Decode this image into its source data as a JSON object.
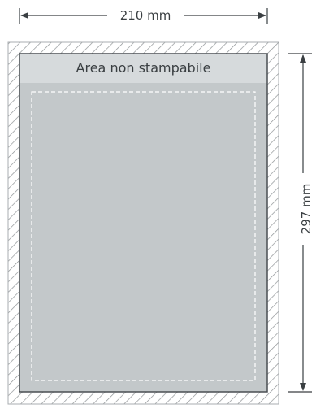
{
  "diagram": {
    "width_label": "210 mm",
    "height_label": "297 mm",
    "non_printable_label": "Area non stampabile"
  },
  "colors": {
    "sheet_fill": "#c3c8ca",
    "header_band": "#d6dadc",
    "outline": "#4a4f53",
    "hatch": "#8f9396",
    "safe_zone_dash": "#ffffff",
    "dimension_line": "#3a3f42"
  }
}
